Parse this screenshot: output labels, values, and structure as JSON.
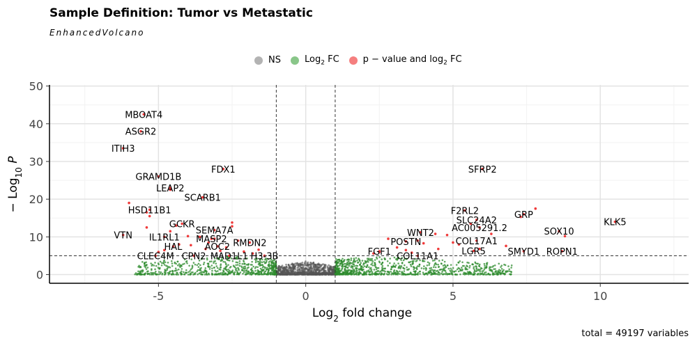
{
  "chart_data": {
    "type": "scatter",
    "title": "Sample Definition: Tumor vs Metastatic",
    "subtitle": "EnhancedVolcano",
    "xlabel": "Log2 fold change",
    "ylabel": "− Log10 P",
    "xlim": [
      -8.7,
      13.0
    ],
    "ylim": [
      -2.3,
      50.3
    ],
    "x_ticks": [
      -5,
      0,
      5,
      10
    ],
    "y_ticks": [
      0,
      10,
      20,
      30,
      40,
      50
    ],
    "fc_cutoff": [
      -1,
      1
    ],
    "p_cutoff": 5,
    "legend_position": "top",
    "legend": [
      {
        "label": "NS",
        "color": "#a0a0a0"
      },
      {
        "label": "Log2 FC",
        "color": "#3f9e3f"
      },
      {
        "label": "p − value and log2 FC",
        "color": "#f04040"
      }
    ],
    "caption": "total = 49197 variables",
    "grid": true,
    "labeled_genes": [
      {
        "gene": "MBOAT4",
        "x": -5.5,
        "y": 42.5
      },
      {
        "gene": "ASGR2",
        "x": -5.6,
        "y": 38.0
      },
      {
        "gene": "ITIH3",
        "x": -6.2,
        "y": 33.5
      },
      {
        "gene": "FDX1",
        "x": -2.8,
        "y": 28.0
      },
      {
        "gene": "GRAMD1B",
        "x": -5.0,
        "y": 26.0
      },
      {
        "gene": "LEAP2",
        "x": -4.6,
        "y": 23.0
      },
      {
        "gene": "SCARB1",
        "x": -3.5,
        "y": 20.5
      },
      {
        "gene": "HSD11B1",
        "x": -5.3,
        "y": 17.2
      },
      {
        "gene": "GCKR",
        "x": -4.2,
        "y": 13.5
      },
      {
        "gene": "SEMA7A",
        "x": -3.1,
        "y": 11.8
      },
      {
        "gene": "VTN",
        "x": -6.2,
        "y": 10.5
      },
      {
        "gene": "IL1RL1",
        "x": -4.8,
        "y": 10.0
      },
      {
        "gene": "MASP2",
        "x": -3.2,
        "y": 9.5
      },
      {
        "gene": "RMDN2",
        "x": -1.9,
        "y": 8.5
      },
      {
        "gene": "HAL",
        "x": -4.5,
        "y": 7.5
      },
      {
        "gene": "AOC2",
        "x": -3.0,
        "y": 7.5
      },
      {
        "gene": "CLEC4M",
        "x": -5.1,
        "y": 5.0
      },
      {
        "gene": "CPN2",
        "x": -3.8,
        "y": 5.0
      },
      {
        "gene": "MAD1L1",
        "x": -2.6,
        "y": 5.0
      },
      {
        "gene": "H3-3B",
        "x": -1.4,
        "y": 5.0
      },
      {
        "gene": "SFRP2",
        "x": 6.0,
        "y": 28.0
      },
      {
        "gene": "F2RL2",
        "x": 5.4,
        "y": 17.0
      },
      {
        "gene": "GRP",
        "x": 7.4,
        "y": 16.0
      },
      {
        "gene": "SLC24A2",
        "x": 5.8,
        "y": 14.5
      },
      {
        "gene": "KLK5",
        "x": 10.5,
        "y": 14.0
      },
      {
        "gene": "AC005291.2",
        "x": 5.9,
        "y": 12.5
      },
      {
        "gene": "WNT2",
        "x": 3.9,
        "y": 11.2
      },
      {
        "gene": "SOX10",
        "x": 8.6,
        "y": 11.5
      },
      {
        "gene": "COL17A1",
        "x": 5.8,
        "y": 9.0
      },
      {
        "gene": "POSTN",
        "x": 3.4,
        "y": 8.8
      },
      {
        "gene": "FGF1",
        "x": 2.5,
        "y": 6.2
      },
      {
        "gene": "LGR5",
        "x": 5.7,
        "y": 6.3
      },
      {
        "gene": "SMYD1",
        "x": 7.4,
        "y": 6.2
      },
      {
        "gene": "ROPN1",
        "x": 8.7,
        "y": 6.2
      },
      {
        "gene": "COL11A1",
        "x": 3.8,
        "y": 5.0
      }
    ],
    "highlighted_points": [
      {
        "x": -6.0,
        "y": 19.0
      },
      {
        "x": -5.4,
        "y": 16.5
      },
      {
        "x": -5.3,
        "y": 15.5
      },
      {
        "x": -5.4,
        "y": 12.5
      },
      {
        "x": -4.6,
        "y": 11.5
      },
      {
        "x": -4.4,
        "y": 13.0
      },
      {
        "x": -4.0,
        "y": 10.2
      },
      {
        "x": -2.5,
        "y": 13.8
      },
      {
        "x": -2.5,
        "y": 12.8
      },
      {
        "x": -3.6,
        "y": 10.0
      },
      {
        "x": -2.3,
        "y": 9.0
      },
      {
        "x": -3.3,
        "y": 8.5
      },
      {
        "x": -4.3,
        "y": 8.0
      },
      {
        "x": -3.9,
        "y": 7.8
      },
      {
        "x": -2.7,
        "y": 7.2
      },
      {
        "x": -3.4,
        "y": 6.8
      },
      {
        "x": -2.9,
        "y": 6.3
      },
      {
        "x": -4.8,
        "y": 6.5
      },
      {
        "x": -2.1,
        "y": 6.1
      },
      {
        "x": -1.6,
        "y": 6.6
      },
      {
        "x": -1.8,
        "y": 5.6
      },
      {
        "x": -5.0,
        "y": 6.0
      },
      {
        "x": -3.1,
        "y": 9.5
      },
      {
        "x": -4.6,
        "y": 22.5
      },
      {
        "x": 7.8,
        "y": 17.5
      },
      {
        "x": 7.3,
        "y": 15.3
      },
      {
        "x": 6.3,
        "y": 10.8
      },
      {
        "x": 5.6,
        "y": 13.5
      },
      {
        "x": 4.4,
        "y": 10.8
      },
      {
        "x": 4.8,
        "y": 10.5
      },
      {
        "x": 5.0,
        "y": 8.5
      },
      {
        "x": 5.2,
        "y": 8.0
      },
      {
        "x": 4.0,
        "y": 8.3
      },
      {
        "x": 6.8,
        "y": 7.6
      },
      {
        "x": 3.1,
        "y": 7.2
      },
      {
        "x": 2.8,
        "y": 9.5
      },
      {
        "x": 3.4,
        "y": 6.5
      },
      {
        "x": 4.5,
        "y": 6.8
      },
      {
        "x": 2.5,
        "y": 6.0
      },
      {
        "x": 3.6,
        "y": 5.8
      },
      {
        "x": 5.9,
        "y": 6.8
      },
      {
        "x": 2.3,
        "y": 5.6
      },
      {
        "x": 8.8,
        "y": 10.2
      },
      {
        "x": 3.8,
        "y": 9.0
      }
    ]
  }
}
